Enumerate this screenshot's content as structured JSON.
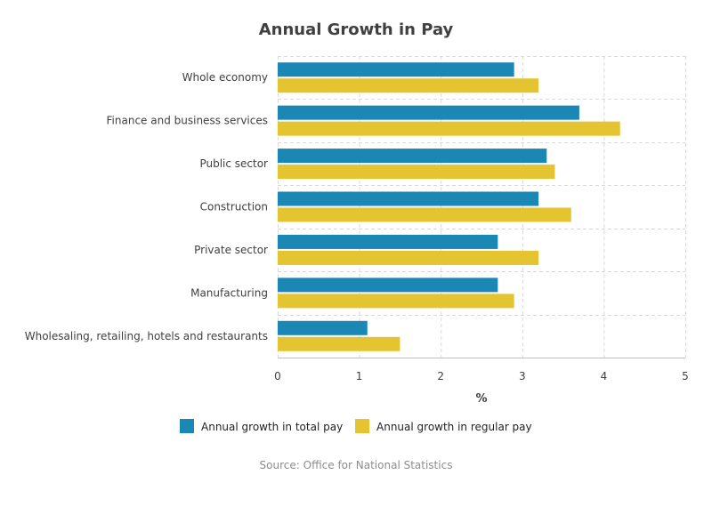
{
  "chart_data": {
    "type": "bar",
    "orientation": "horizontal",
    "title": "Annual Growth in Pay",
    "xlabel": "%",
    "ylabel": "",
    "xlim": [
      0,
      5
    ],
    "ticks": [
      0,
      1,
      2,
      3,
      4,
      5
    ],
    "categories": [
      "Whole economy",
      "Finance and business services",
      "Public sector",
      "Construction",
      "Private sector",
      "Manufacturing",
      "Wholesaling, retailing, hotels and restaurants"
    ],
    "series": [
      {
        "name": "Annual growth in total pay",
        "color": "#1b87b4",
        "values": [
          2.9,
          3.7,
          3.3,
          3.2,
          2.7,
          2.7,
          1.1
        ]
      },
      {
        "name": "Annual growth in regular pay",
        "color": "#e5c431",
        "values": [
          3.2,
          4.2,
          3.4,
          3.6,
          3.2,
          2.9,
          1.5
        ]
      }
    ],
    "grid": true,
    "legend_position": "bottom"
  },
  "source": "Source: Office for National Statistics"
}
